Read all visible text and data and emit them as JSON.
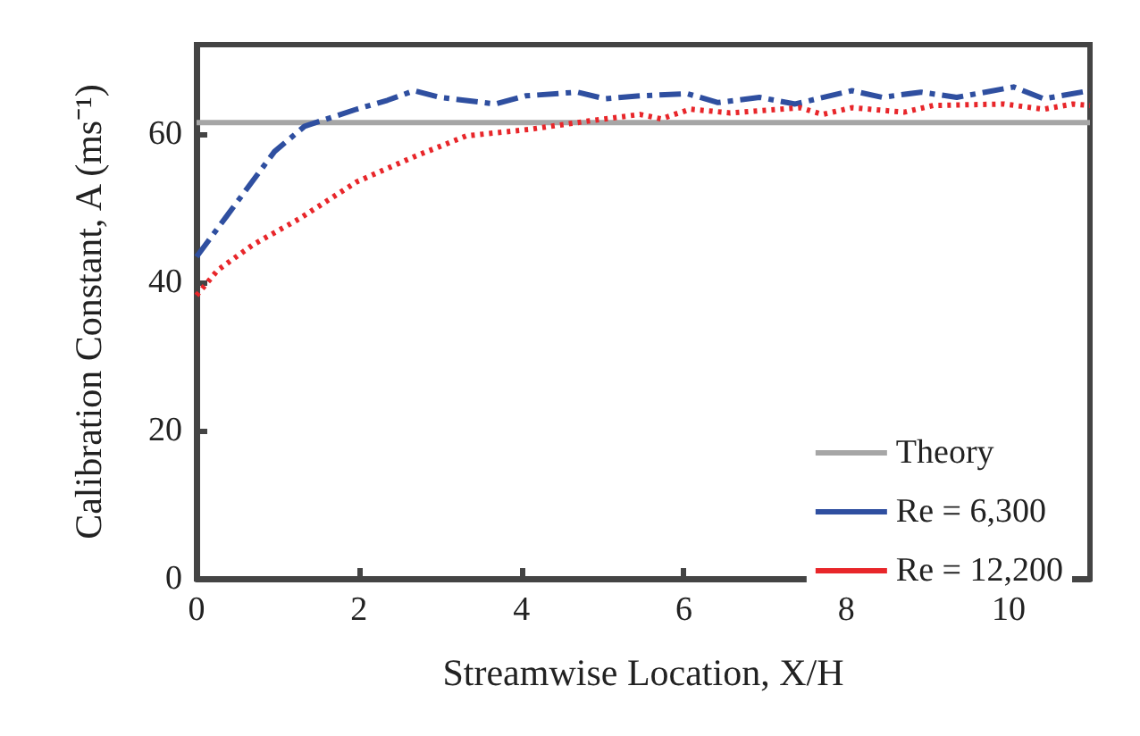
{
  "chart_data": {
    "type": "line",
    "xlabel": "Streamwise Location, X/H",
    "ylabel": "Calibration Constant, A (ms⁻¹)",
    "xlim": [
      0,
      11
    ],
    "xticks": [
      0,
      2,
      4,
      6,
      8,
      10
    ],
    "ylim": [
      0,
      72
    ],
    "yticks": [
      0,
      20,
      40,
      60
    ],
    "grid": false,
    "legend": "bottom right",
    "marker": "none",
    "series": [
      {
        "name": "Theory",
        "color": "#a6a6a6",
        "line_style": "solid",
        "x": [
          0,
          11
        ],
        "values": [
          61.5,
          61.5
        ]
      },
      {
        "name": "Re = 6,300",
        "color": "#2f4fa0",
        "line_style": "dashed",
        "x": [
          0,
          0.96,
          1.33,
          1.97,
          2.35,
          2.68,
          3.0,
          3.68,
          4.05,
          4.69,
          5.03,
          5.46,
          6.04,
          6.42,
          6.93,
          7.37,
          8.07,
          8.44,
          8.92,
          9.36,
          10.06,
          10.43,
          11
        ],
        "values": [
          43.4,
          57.6,
          61,
          63.3,
          64.5,
          65.8,
          64.9,
          64.0,
          65.1,
          65.6,
          64.7,
          65.1,
          65.4,
          64.2,
          64.9,
          64.0,
          65.8,
          64.9,
          65.6,
          64.9,
          66.3,
          64.7,
          65.8
        ]
      },
      {
        "name": "Re = 12,200",
        "color": "#e8262a",
        "line_style": "dotted",
        "x": [
          0,
          0.26,
          0.69,
          1.26,
          1.97,
          2.68,
          3.32,
          4.11,
          4.82,
          5.46,
          5.72,
          6.08,
          6.57,
          7.43,
          7.71,
          8.07,
          8.71,
          9.07,
          9.94,
          10.43,
          10.79,
          11
        ],
        "values": [
          38.2,
          41.6,
          45,
          48.5,
          53.5,
          56.9,
          59.7,
          60.6,
          61.7,
          62.6,
          62,
          63.3,
          62.8,
          63.5,
          62.6,
          63.5,
          62.9,
          63.8,
          64.0,
          63.3,
          64.0,
          63.8
        ]
      }
    ]
  }
}
